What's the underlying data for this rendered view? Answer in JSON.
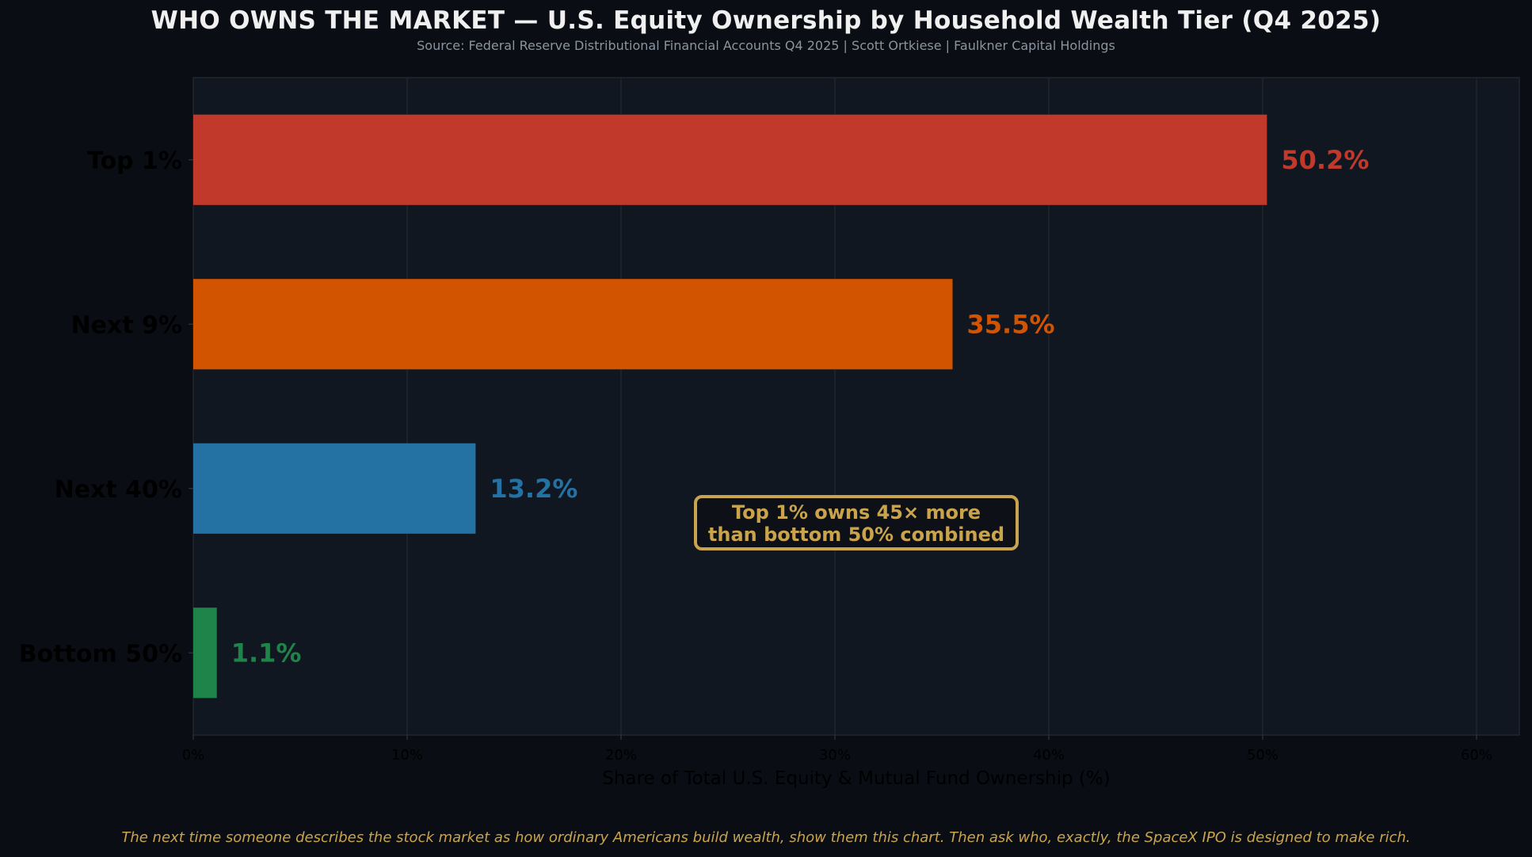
{
  "header": {
    "title": "WHO OWNS THE MARKET — U.S. Equity Ownership by Household Wealth Tier (Q4 2025)",
    "subtitle": "Source: Federal Reserve Distributional Financial Accounts Q4 2025  |  Scott Ortkiese  |  Faulkner Capital Holdings"
  },
  "callout": {
    "line1": "Top 1% owns 45× more",
    "line2": "than bottom 50% combined"
  },
  "footnote": "The next time someone describes the stock market as how ordinary Americans build wealth, show them this chart. Then ask who, exactly, the SpaceX IPO is designed to make rich.",
  "colors": {
    "background": "#0a0e14",
    "plot_background": "#111720",
    "grid": "#21262d",
    "top1": "#c0392b",
    "next9": "#d35400",
    "next40": "#2471a3",
    "bottom50": "#1e8449",
    "accent": "#c9a44d"
  },
  "chart_data": {
    "type": "bar",
    "orientation": "horizontal",
    "title": "WHO OWNS THE MARKET — U.S. Equity Ownership by Household Wealth Tier (Q4 2025)",
    "xlabel": "Share of Total U.S. Equity & Mutual Fund Ownership (%)",
    "ylabel": "",
    "categories": [
      "Top 1%",
      "Next 9%",
      "Next 40%",
      "Bottom 50%"
    ],
    "values": [
      50.2,
      35.5,
      13.2,
      1.1
    ],
    "value_labels": [
      "50.2%",
      "35.5%",
      "13.2%",
      "1.1%"
    ],
    "bar_colors": [
      "#c0392b",
      "#d35400",
      "#2471a3",
      "#1e8449"
    ],
    "xlim": [
      0,
      62
    ],
    "xticks": [
      0,
      10,
      20,
      30,
      40,
      50,
      60
    ],
    "xtick_labels": [
      "0%",
      "10%",
      "20%",
      "30%",
      "40%",
      "50%",
      "60%"
    ],
    "grid": "vertical",
    "legend": "none"
  }
}
